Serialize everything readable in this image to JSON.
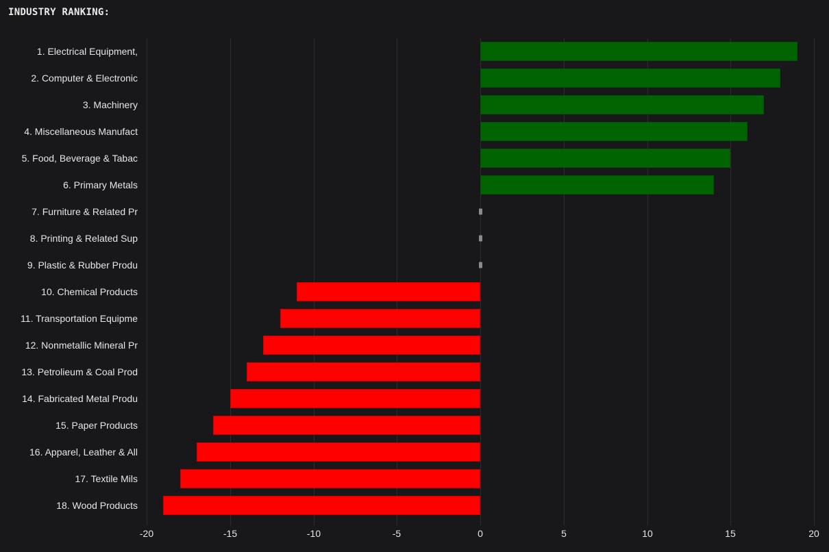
{
  "title": "INDUSTRY RANKING:",
  "colors": {
    "background": "#18181a",
    "positive": "#006400",
    "negative": "#ff0000",
    "zero": "#8a8a8a",
    "grid": "#2e2e31"
  },
  "chart_data": {
    "type": "bar",
    "orientation": "horizontal",
    "title": "INDUSTRY RANKING:",
    "xlabel": "",
    "ylabel": "",
    "xlim": [
      -20,
      20
    ],
    "xticks": [
      -20,
      -15,
      -10,
      -5,
      0,
      5,
      10,
      15,
      20
    ],
    "grid": "vertical",
    "legend": null,
    "categories": [
      "1. Electrical Equipment,",
      "2. Computer & Electronic",
      "3. Machinery",
      "4. Miscellaneous Manufact",
      "5. Food, Beverage & Tabac",
      "6. Primary Metals",
      "7. Furniture & Related Pr",
      "8. Printing & Related Sup",
      "9. Plastic & Rubber Produ",
      "10. Chemical Products",
      "11. Transportation Equipme",
      "12. Nonmetallic Mineral Pr",
      "13. Petrolieum & Coal Prod",
      "14. Fabricated Metal Produ",
      "15. Paper Products",
      "16. Apparel, Leather & All",
      "17. Textile Mils",
      "18. Wood Products"
    ],
    "values": [
      19,
      18,
      17,
      16,
      15,
      14,
      0,
      0,
      0,
      -11,
      -12,
      -13,
      -14,
      -15,
      -16,
      -17,
      -18,
      -19
    ]
  }
}
